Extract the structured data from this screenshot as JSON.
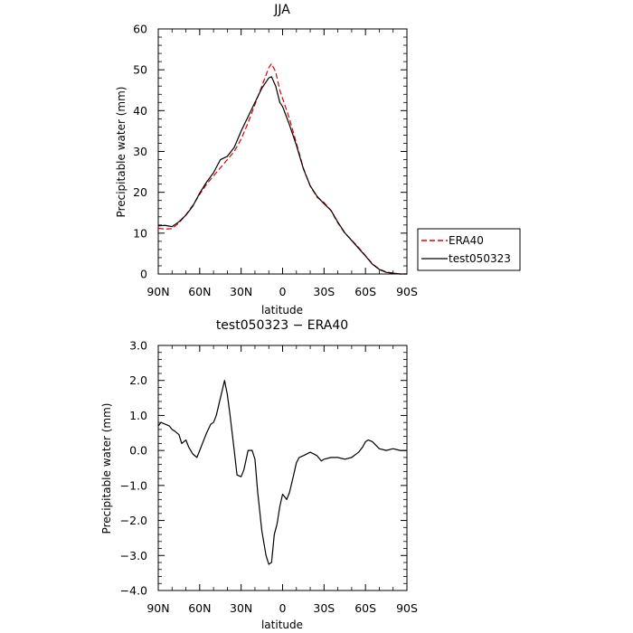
{
  "chart_data": [
    {
      "type": "line",
      "title": "JJA",
      "xlabel": "latitude",
      "ylabel": "Precipitable water (mm)",
      "xlim": [
        90,
        -90
      ],
      "ylim": [
        0,
        60
      ],
      "yticks": [
        0,
        10,
        20,
        30,
        40,
        50,
        60
      ],
      "yticks_labels": [
        "0",
        "10",
        "20",
        "30",
        "40",
        "50",
        "60"
      ],
      "xticks": [
        90,
        60,
        30,
        0,
        -30,
        -60,
        -90
      ],
      "xtick_labels": [
        "90N",
        "60N",
        "30N",
        "0",
        "30S",
        "60S",
        "90S"
      ],
      "legend_position": "right",
      "series": [
        {
          "name": "ERA40",
          "color": "#e00000",
          "dash": "dashed",
          "x": [
            90,
            85,
            80,
            75,
            70,
            65,
            60,
            55,
            50,
            45,
            40,
            35,
            30,
            25,
            20,
            15,
            10,
            8,
            5,
            2,
            0,
            -5,
            -10,
            -15,
            -20,
            -25,
            -30,
            -35,
            -40,
            -45,
            -50,
            -55,
            -60,
            -65,
            -70,
            -75,
            -80,
            -85,
            -90
          ],
          "y": [
            11.2,
            11.0,
            11.1,
            12.5,
            14.5,
            16.8,
            19.5,
            22.0,
            24.0,
            26.0,
            28.0,
            30.0,
            33.0,
            37.0,
            41.5,
            46.0,
            50.5,
            51.5,
            49.5,
            45.0,
            43.0,
            38.0,
            32.0,
            26.0,
            21.5,
            18.8,
            17.5,
            15.5,
            12.5,
            10.0,
            8.3,
            6.5,
            4.5,
            2.5,
            1.2,
            0.5,
            0.2,
            0.0,
            0.0
          ]
        },
        {
          "name": "test050323",
          "color": "#000000",
          "dash": "solid",
          "x": [
            90,
            85,
            80,
            75,
            70,
            65,
            60,
            55,
            50,
            45,
            40,
            35,
            30,
            25,
            20,
            15,
            10,
            8,
            5,
            2,
            0,
            -5,
            -10,
            -15,
            -20,
            -25,
            -30,
            -35,
            -40,
            -45,
            -50,
            -55,
            -60,
            -65,
            -70,
            -75,
            -80,
            -85,
            -90
          ],
          "y": [
            11.8,
            11.9,
            11.6,
            12.8,
            14.4,
            16.6,
            19.8,
            22.5,
            24.8,
            28.0,
            28.8,
            31.0,
            35.0,
            38.5,
            42.0,
            45.5,
            48.0,
            48.3,
            46.0,
            42.0,
            41.0,
            36.5,
            31.5,
            25.8,
            21.6,
            19.0,
            17.2,
            15.6,
            12.7,
            10.1,
            8.2,
            6.3,
            4.4,
            2.4,
            1.1,
            0.4,
            0.2,
            0.0,
            0.0
          ]
        }
      ]
    },
    {
      "type": "line",
      "title": "test050323 − ERA40",
      "xlabel": "latitude",
      "ylabel": "Precipitable water (mm)",
      "xlim": [
        90,
        -90
      ],
      "ylim": [
        -4,
        3
      ],
      "yticks": [
        -4,
        -3,
        -2,
        -1,
        0,
        1,
        2,
        3
      ],
      "ytick_labels": [
        "−4.0",
        "−3.0",
        "−2.0",
        "−1.0",
        "0.0",
        "1.0",
        "2.0",
        "3.0"
      ],
      "xticks": [
        90,
        60,
        30,
        0,
        -30,
        -60,
        -90
      ],
      "xtick_labels": [
        "90N",
        "60N",
        "30N",
        "0",
        "30S",
        "60S",
        "90S"
      ],
      "series": [
        {
          "color": "#000000",
          "x": [
            90,
            88,
            85,
            82,
            80,
            78,
            75,
            73,
            70,
            68,
            65,
            62,
            60,
            58,
            55,
            52,
            50,
            48,
            45,
            42,
            40,
            38,
            35,
            33,
            30,
            28,
            25,
            22,
            20,
            18,
            15,
            12,
            10,
            8,
            6,
            4,
            2,
            0,
            -3,
            -5,
            -8,
            -10,
            -12,
            -15,
            -20,
            -25,
            -28,
            -30,
            -35,
            -40,
            -45,
            -50,
            -55,
            -58,
            -60,
            -62,
            -65,
            -70,
            -75,
            -80,
            -85,
            -90
          ],
          "y": [
            0.7,
            0.8,
            0.75,
            0.7,
            0.6,
            0.55,
            0.45,
            0.2,
            0.3,
            0.1,
            -0.1,
            -0.2,
            0.0,
            0.2,
            0.5,
            0.75,
            0.8,
            1.0,
            1.5,
            2.0,
            1.6,
            1.0,
            0.0,
            -0.7,
            -0.75,
            -0.55,
            0.0,
            0.0,
            -0.25,
            -1.2,
            -2.3,
            -3.0,
            -3.25,
            -3.2,
            -2.4,
            -2.1,
            -1.6,
            -1.25,
            -1.4,
            -1.2,
            -0.7,
            -0.35,
            -0.2,
            -0.15,
            -0.05,
            -0.15,
            -0.3,
            -0.25,
            -0.2,
            -0.2,
            -0.25,
            -0.2,
            -0.05,
            0.1,
            0.25,
            0.3,
            0.25,
            0.05,
            0.0,
            0.05,
            0.0,
            0.0
          ]
        }
      ]
    }
  ]
}
